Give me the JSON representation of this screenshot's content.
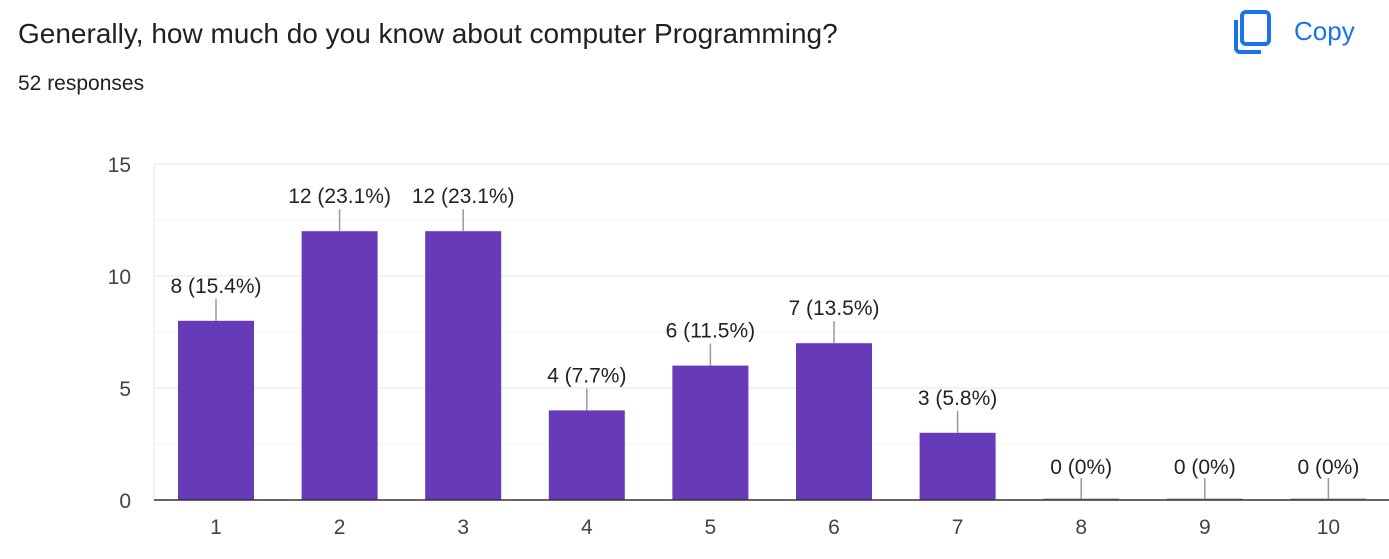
{
  "question": {
    "title": "Generally, how much do you know about computer Programming?",
    "responses": "52 responses"
  },
  "copy": {
    "label": "Copy",
    "icon": "copy-icon"
  },
  "colors": {
    "bar": "#673ab7",
    "accent": "#1a73e8"
  },
  "chart_data": {
    "type": "bar",
    "categories": [
      "1",
      "2",
      "3",
      "4",
      "5",
      "6",
      "7",
      "8",
      "9",
      "10"
    ],
    "values": [
      8,
      12,
      12,
      4,
      6,
      7,
      3,
      0,
      0,
      0
    ],
    "labels": [
      "8 (15.4%)",
      "12 (23.1%)",
      "12 (23.1%)",
      "4 (7.7%)",
      "6 (11.5%)",
      "7 (13.5%)",
      "3 (5.8%)",
      "0 (0%)",
      "0 (0%)",
      "0 (0%)"
    ],
    "yticks": [
      0,
      5,
      10,
      15
    ],
    "ylim": [
      0,
      15
    ],
    "title": "",
    "xlabel": "",
    "ylabel": "",
    "grid": true
  }
}
